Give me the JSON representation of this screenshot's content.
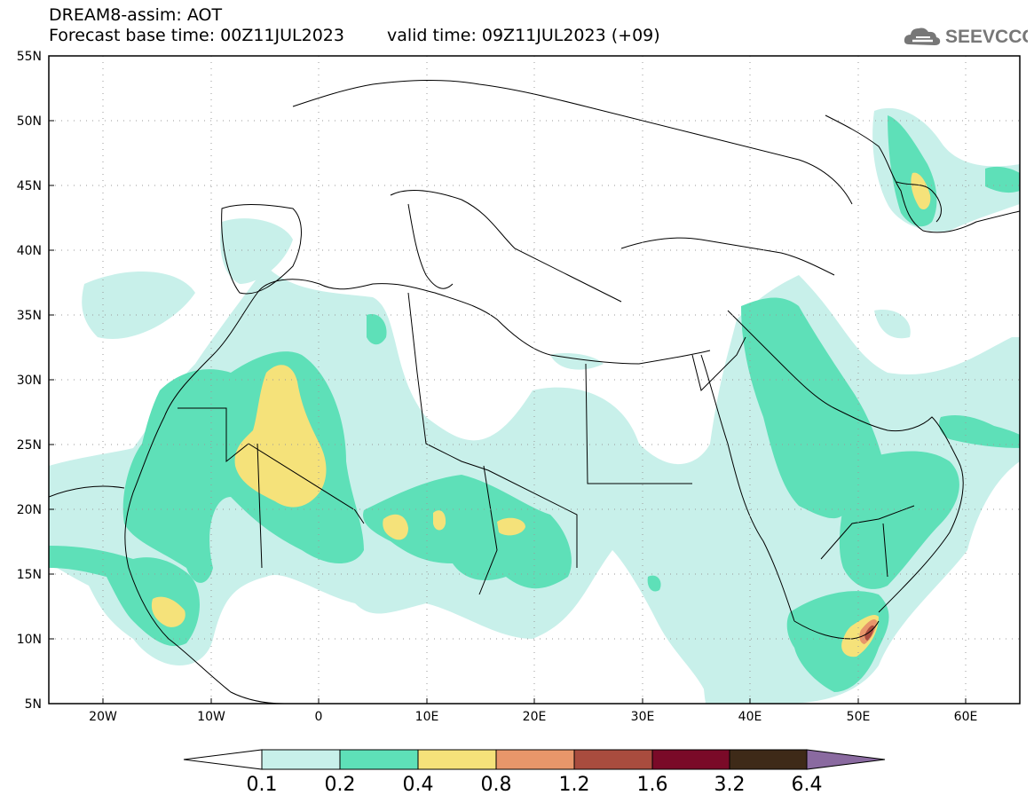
{
  "header": {
    "line1": "DREAM8-assim: AOT",
    "line2_base": "Forecast base time: 00Z11JUL2023",
    "line2_valid": "valid time: 09Z11JUL2023 (+09)",
    "logo_text": "SEEVCCC"
  },
  "map": {
    "lat_labels": [
      "55N",
      "50N",
      "45N",
      "40N",
      "35N",
      "30N",
      "25N",
      "20N",
      "15N",
      "10N",
      "5N"
    ],
    "lon_labels": [
      "20W",
      "10W",
      "0",
      "10E",
      "20E",
      "30E",
      "40E",
      "50E",
      "60E"
    ],
    "lon_range": [
      -25,
      65
    ],
    "lat_range": [
      5,
      55
    ]
  },
  "legend": {
    "levels": [
      "0.1",
      "0.2",
      "0.4",
      "0.8",
      "1.2",
      "1.6",
      "3.2",
      "6.4"
    ],
    "colors": [
      "#ffffff",
      "#c8f0ea",
      "#5ee0b8",
      "#f5e27a",
      "#e8966a",
      "#a94c3e",
      "#7a0a28",
      "#3e2a18",
      "#8a6aa0"
    ]
  },
  "colors": {
    "c1": "#c8f0ea",
    "c2": "#5ee0b8",
    "c3": "#f5e27a",
    "c4": "#e8966a",
    "c5": "#a94c3e"
  }
}
